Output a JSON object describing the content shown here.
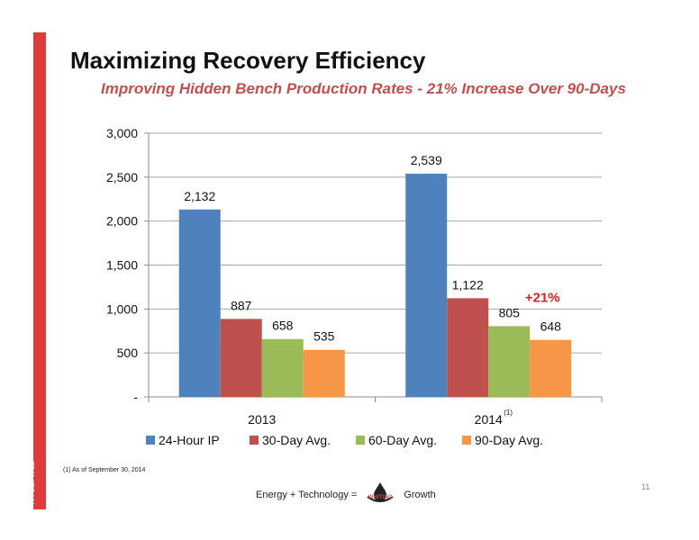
{
  "slide": {
    "title": "Maximizing Recovery Efficiency",
    "subtitle": "Improving Hidden Bench Production Rates - 21% Increase Over 90-Days",
    "side_label": "NYSE: WLL",
    "footnote": "(1) As of September 30, 2014",
    "page_number": "11",
    "footer": {
      "left_text": "Energy + Technology =",
      "logo_text": "WHITING",
      "right_text": "Growth"
    }
  },
  "colors": {
    "accent": "#e03b3b",
    "subtitle": "#c0504d",
    "callout": "#e02020"
  },
  "chart_data": {
    "type": "bar",
    "categories": [
      "2013",
      "2014"
    ],
    "category_superscripts": [
      "",
      "(1)"
    ],
    "series": [
      {
        "name": "24-Hour IP",
        "color": "#4f81bd",
        "values": [
          2132,
          2539
        ],
        "labels": [
          "2,132",
          "2,539"
        ]
      },
      {
        "name": "30-Day Avg.",
        "color": "#c0504d",
        "values": [
          887,
          1122
        ],
        "labels": [
          "887",
          "1,122"
        ]
      },
      {
        "name": "60-Day Avg.",
        "color": "#9bbb59",
        "values": [
          658,
          805
        ],
        "labels": [
          "658",
          "805"
        ]
      },
      {
        "name": "90-Day Avg.",
        "color": "#f79646",
        "values": [
          535,
          648
        ],
        "labels": [
          "535",
          "648"
        ]
      }
    ],
    "yticks": [
      0,
      500,
      1000,
      1500,
      2000,
      2500,
      3000
    ],
    "ytick_labels": [
      "-",
      "500",
      "1,000",
      "1,500",
      "2,000",
      "2,500",
      "3,000"
    ],
    "ylim": [
      0,
      3000
    ],
    "grid": true,
    "legend_position": "bottom",
    "annotation": {
      "text": "+21%",
      "category": "2014",
      "series": "60-Day Avg."
    }
  }
}
